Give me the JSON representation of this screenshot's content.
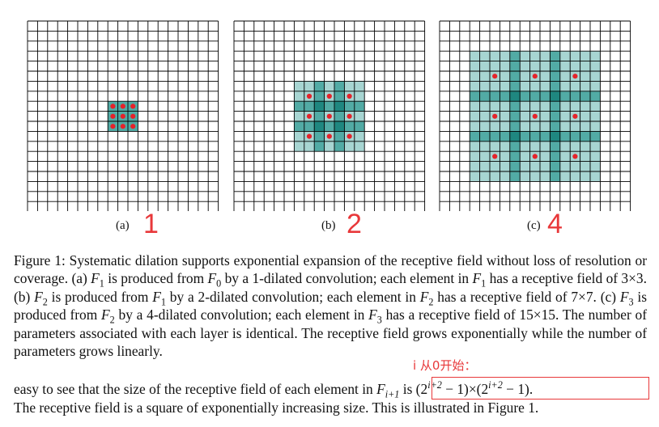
{
  "figure": {
    "panels": [
      {
        "id": "a",
        "label": "(a)",
        "annotation": "1",
        "dilation": 1,
        "receptive_field": 3
      },
      {
        "id": "b",
        "label": "(b)",
        "annotation": "2",
        "dilation": 2,
        "receptive_field": 7
      },
      {
        "id": "c",
        "label": "(c)",
        "annotation": "4",
        "dilation": 4,
        "receptive_field": 15
      }
    ],
    "grid_cells": 19,
    "colors": {
      "grid_line": "#000000",
      "light_fill": "#a7d5d2",
      "mid_fill": "#52aba5",
      "dark_fill": "#1f8780",
      "dot": "#e5232b",
      "annotation": "#e8383a"
    }
  },
  "caption": {
    "s1": "Figure 1: Systematic dilation supports exponential expansion of the receptive field without loss of resolution or coverage. (a) ",
    "s2": " is produced from ",
    "s3": " by a 1-dilated convolution; each element in ",
    "s4": " has a receptive field of 3×3. (b) ",
    "s5": " is produced from ",
    "s6": " by a 2-dilated convolution; each element in ",
    "s7": " has a receptive field of 7×7. (c) ",
    "s8": " is produced from ",
    "s9": " by a 4-dilated convolution; each element in ",
    "s10": " has a receptive field of 15×15. The number of parameters associated with each layer is identical. The receptive field grows exponentially while the number of parameters grows linearly.",
    "F": "F",
    "sub0": "0",
    "sub1": "1",
    "sub2": "2",
    "sub3": "3"
  },
  "annotation_note": "i 从0开始：",
  "body": {
    "line1_text": "easy to see that the size of the receptive field of each element in ",
    "formula_F": "F",
    "formula_sub": "i+1",
    "formula_is": " is (2",
    "formula_sup": "i+2",
    "formula_mid": " − 1)×(2",
    "formula_sup2": "i+2",
    "formula_end": " − 1).",
    "line2_text": "The receptive field is a square of exponentially increasing size. This is illustrated in Figure 1."
  }
}
